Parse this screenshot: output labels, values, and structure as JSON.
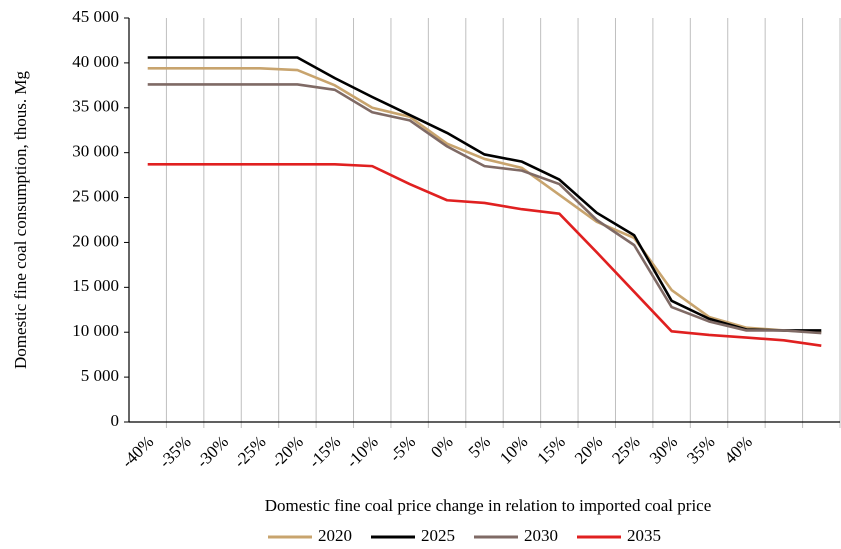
{
  "chart_data": {
    "type": "line",
    "x_label": "Domestic fine coal price change in relation to imported coal price",
    "y_label": "Domestic fine coal consumption, thous. Mg",
    "categories": [
      "-40%",
      "-35%",
      "-30%",
      "-25%",
      "-20%",
      "-15%",
      "-10%",
      "-5%",
      "0%",
      "5%",
      "10%",
      "15%",
      "20%",
      "25%",
      "30%",
      "35%",
      "40%",
      null,
      null
    ],
    "series": [
      {
        "name": "2020",
        "color": "#c8a46e",
        "values": [
          39400,
          39400,
          39400,
          39400,
          39200,
          37500,
          35000,
          34000,
          31000,
          29300,
          28300,
          25300,
          22300,
          20500,
          14700,
          11700,
          10500,
          10200,
          10000
        ]
      },
      {
        "name": "2025",
        "color": "#000000",
        "values": [
          40600,
          40600,
          40600,
          40600,
          40600,
          38300,
          36200,
          34200,
          32200,
          29800,
          29000,
          27000,
          23300,
          20800,
          13500,
          11500,
          10300,
          10200,
          10200
        ]
      },
      {
        "name": "2030",
        "color": "#7f6a65",
        "values": [
          37600,
          37600,
          37600,
          37600,
          37600,
          37000,
          34500,
          33600,
          30700,
          28500,
          28000,
          26500,
          22500,
          19700,
          12800,
          11200,
          10200,
          10200,
          9900
        ]
      },
      {
        "name": "2035",
        "color": "#e02020",
        "values": [
          28700,
          28700,
          28700,
          28700,
          28700,
          28700,
          28500,
          26500,
          24700,
          24400,
          23700,
          23200,
          18900,
          14500,
          10100,
          9700,
          9400,
          9100,
          8500
        ]
      }
    ],
    "ylim": [
      0,
      45000
    ],
    "yticks": [
      0,
      {
        "value": 5000,
        "label": "5 000"
      },
      {
        "value": 10000,
        "label": "10 000"
      },
      {
        "value": 15000,
        "label": "15 000"
      },
      {
        "value": 20000,
        "label": "20 000"
      },
      {
        "value": 25000,
        "label": "25 000"
      },
      {
        "value": 30000,
        "label": "30 000"
      },
      {
        "value": 35000,
        "label": "35 000"
      },
      {
        "value": 40000,
        "label": "40 000"
      },
      {
        "value": 45000,
        "label": "45 000"
      }
    ],
    "legend": "bottom"
  }
}
